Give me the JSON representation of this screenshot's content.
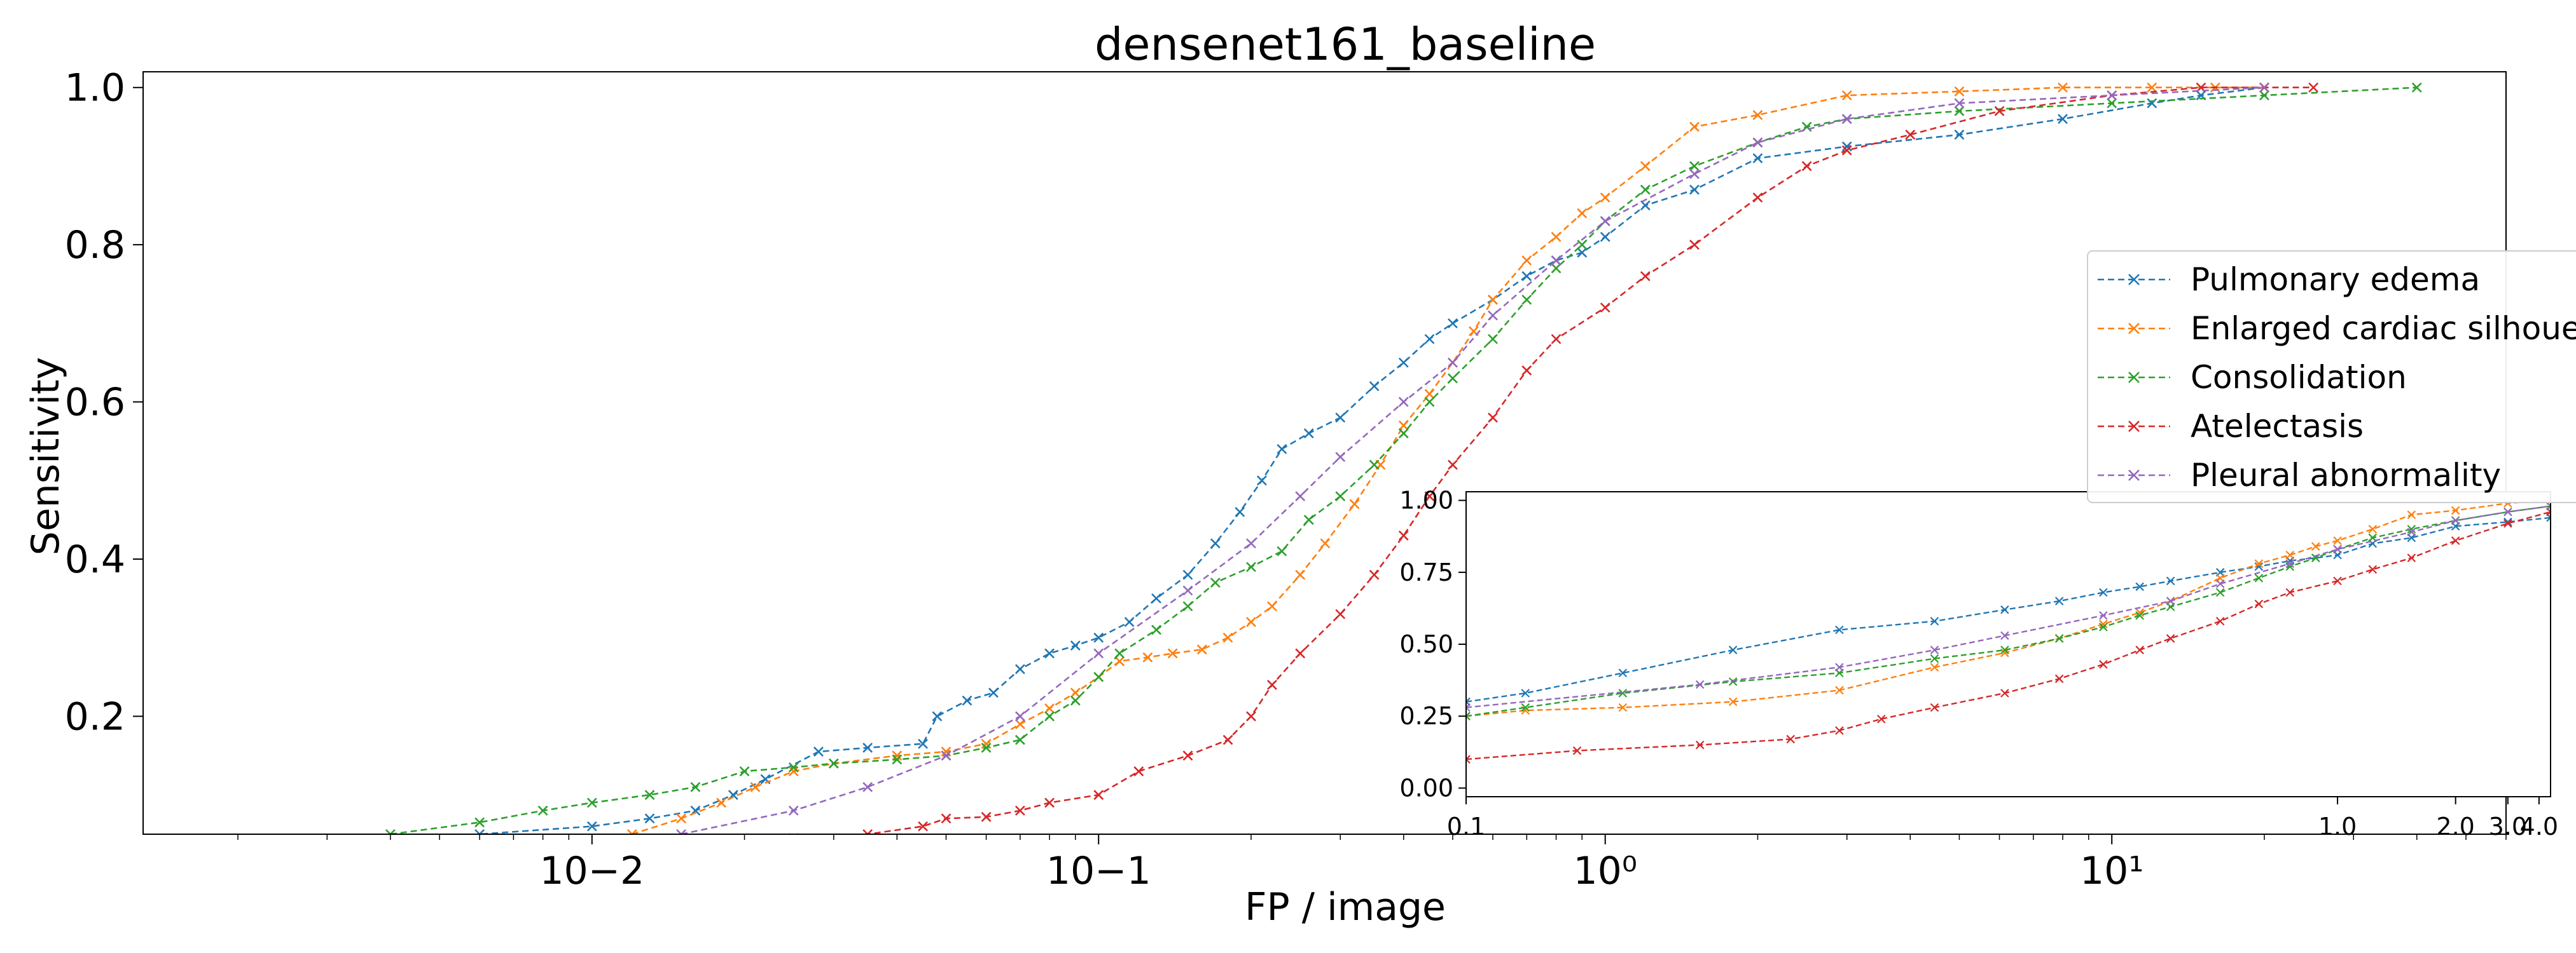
{
  "chart_data": [
    {
      "type": "line",
      "title": "densenet161_baseline",
      "xlabel": "FP / image",
      "ylabel": "Sensitivity",
      "xscale": "log",
      "xlim": [
        0.0013,
        60
      ],
      "ylim": [
        0.05,
        1.02
      ],
      "xticks": [
        0.01,
        0.1,
        1,
        10
      ],
      "xtick_labels": [
        "10−2",
        "10−1",
        "10⁰",
        "10¹"
      ],
      "yticks": [
        0.2,
        0.4,
        0.6,
        0.8,
        1.0
      ],
      "ytick_labels": [
        "0.2",
        "0.4",
        "0.6",
        "0.8",
        "1.0"
      ],
      "grid": false,
      "legend_position": "right",
      "marker": "x",
      "linestyle": "dashed",
      "series": [
        {
          "name": "Pulmonary edema",
          "color": "#1f77b4",
          "x": [
            0.004,
            0.006,
            0.01,
            0.013,
            0.016,
            0.019,
            0.022,
            0.028,
            0.035,
            0.045,
            0.048,
            0.055,
            0.062,
            0.07,
            0.08,
            0.09,
            0.1,
            0.115,
            0.13,
            0.15,
            0.17,
            0.19,
            0.21,
            0.23,
            0.26,
            0.3,
            0.35,
            0.4,
            0.45,
            0.5,
            0.6,
            0.7,
            0.8,
            0.9,
            1.0,
            1.2,
            1.5,
            2.0,
            3.0,
            5.0,
            8.0,
            12.0,
            15.0,
            20.0
          ],
          "y": [
            0.04,
            0.05,
            0.06,
            0.07,
            0.08,
            0.1,
            0.12,
            0.155,
            0.16,
            0.165,
            0.2,
            0.22,
            0.23,
            0.26,
            0.28,
            0.29,
            0.3,
            0.32,
            0.35,
            0.38,
            0.42,
            0.46,
            0.5,
            0.54,
            0.56,
            0.58,
            0.62,
            0.65,
            0.68,
            0.7,
            0.73,
            0.76,
            0.78,
            0.79,
            0.81,
            0.85,
            0.87,
            0.91,
            0.925,
            0.94,
            0.96,
            0.98,
            0.99,
            1.0
          ]
        },
        {
          "name": "Enlarged cardiac silhouette",
          "color": "#ff7f0e",
          "x": [
            0.012,
            0.015,
            0.018,
            0.021,
            0.025,
            0.03,
            0.04,
            0.05,
            0.06,
            0.07,
            0.08,
            0.09,
            0.1,
            0.11,
            0.125,
            0.14,
            0.16,
            0.18,
            0.2,
            0.22,
            0.25,
            0.28,
            0.32,
            0.36,
            0.4,
            0.45,
            0.5,
            0.55,
            0.6,
            0.7,
            0.8,
            0.9,
            1.0,
            1.2,
            1.5,
            2.0,
            3.0,
            5.0,
            8.0,
            12.0,
            16.0,
            20.0
          ],
          "y": [
            0.05,
            0.07,
            0.09,
            0.11,
            0.13,
            0.14,
            0.15,
            0.155,
            0.165,
            0.19,
            0.21,
            0.23,
            0.25,
            0.27,
            0.275,
            0.28,
            0.285,
            0.3,
            0.32,
            0.34,
            0.38,
            0.42,
            0.47,
            0.52,
            0.57,
            0.61,
            0.65,
            0.69,
            0.73,
            0.78,
            0.81,
            0.84,
            0.86,
            0.9,
            0.95,
            0.965,
            0.99,
            0.995,
            1.0,
            1.0,
            1.0,
            1.0
          ]
        },
        {
          "name": "Consolidation",
          "color": "#2ca02c",
          "x": [
            0.004,
            0.006,
            0.008,
            0.01,
            0.013,
            0.016,
            0.02,
            0.025,
            0.03,
            0.04,
            0.05,
            0.06,
            0.07,
            0.08,
            0.09,
            0.1,
            0.11,
            0.13,
            0.15,
            0.17,
            0.2,
            0.23,
            0.26,
            0.3,
            0.35,
            0.4,
            0.45,
            0.5,
            0.6,
            0.7,
            0.8,
            0.9,
            1.0,
            1.2,
            1.5,
            2.0,
            2.5,
            3.0,
            5.0,
            10.0,
            20.0,
            40.0
          ],
          "y": [
            0.05,
            0.065,
            0.08,
            0.09,
            0.1,
            0.11,
            0.13,
            0.135,
            0.14,
            0.145,
            0.15,
            0.16,
            0.17,
            0.2,
            0.22,
            0.25,
            0.28,
            0.31,
            0.34,
            0.37,
            0.39,
            0.41,
            0.45,
            0.48,
            0.52,
            0.56,
            0.6,
            0.63,
            0.68,
            0.73,
            0.77,
            0.8,
            0.83,
            0.87,
            0.9,
            0.93,
            0.95,
            0.96,
            0.97,
            0.98,
            0.99,
            1.0
          ]
        },
        {
          "name": "Atelectasis",
          "color": "#d62728",
          "x": [
            0.015,
            0.025,
            0.035,
            0.045,
            0.05,
            0.06,
            0.07,
            0.08,
            0.1,
            0.12,
            0.15,
            0.18,
            0.2,
            0.22,
            0.25,
            0.3,
            0.35,
            0.4,
            0.45,
            0.5,
            0.6,
            0.7,
            0.8,
            1.0,
            1.2,
            1.5,
            2.0,
            2.5,
            3.0,
            4.0,
            6.0,
            10.0,
            15.0,
            20.0,
            25.0
          ],
          "y": [
            0.04,
            0.045,
            0.05,
            0.06,
            0.07,
            0.072,
            0.08,
            0.09,
            0.1,
            0.13,
            0.15,
            0.17,
            0.2,
            0.24,
            0.28,
            0.33,
            0.38,
            0.43,
            0.48,
            0.52,
            0.58,
            0.64,
            0.68,
            0.72,
            0.76,
            0.8,
            0.86,
            0.9,
            0.92,
            0.94,
            0.97,
            0.99,
            1.0,
            1.0,
            1.0
          ]
        },
        {
          "name": "Pleural abnormality",
          "color": "#9467bd",
          "x": [
            0.015,
            0.025,
            0.035,
            0.05,
            0.07,
            0.1,
            0.15,
            0.2,
            0.25,
            0.3,
            0.4,
            0.5,
            0.6,
            0.8,
            1.0,
            1.5,
            2.0,
            3.0,
            5.0,
            10.0,
            20.0
          ],
          "y": [
            0.05,
            0.08,
            0.11,
            0.15,
            0.2,
            0.28,
            0.36,
            0.42,
            0.48,
            0.53,
            0.6,
            0.65,
            0.71,
            0.78,
            0.83,
            0.89,
            0.93,
            0.96,
            0.98,
            0.99,
            1.0
          ]
        }
      ]
    },
    {
      "type": "line",
      "title": "",
      "xlabel": "",
      "ylabel": "",
      "xscale": "reciprocal",
      "xlim": [
        0.1,
        4.5
      ],
      "ylim": [
        -0.03,
        1.03
      ],
      "xticks": [
        0.1,
        1.0,
        2.0,
        3.0,
        4.0
      ],
      "xtick_labels": [
        "0.1",
        "1.0",
        "2.0",
        "3.0",
        "4.0"
      ],
      "yticks": [
        0.0,
        0.25,
        0.5,
        0.75,
        1.0
      ],
      "ytick_labels": [
        "0.00",
        "0.25",
        "0.50",
        "0.75",
        "1.00"
      ],
      "grid": false,
      "inset": "lower-right",
      "marker": "x",
      "linestyle": "dashed",
      "series": [
        {
          "color": "#1f77b4",
          "x": [
            0.1,
            0.11,
            0.13,
            0.16,
            0.2,
            0.25,
            0.3,
            0.35,
            0.4,
            0.45,
            0.5,
            0.6,
            0.7,
            0.8,
            0.9,
            1.0,
            1.2,
            1.5,
            2.0,
            3.0,
            4.5
          ],
          "y": [
            0.3,
            0.33,
            0.4,
            0.48,
            0.55,
            0.58,
            0.62,
            0.65,
            0.68,
            0.7,
            0.72,
            0.75,
            0.77,
            0.79,
            0.8,
            0.81,
            0.85,
            0.87,
            0.91,
            0.925,
            0.94
          ]
        },
        {
          "color": "#ff7f0e",
          "x": [
            0.1,
            0.11,
            0.13,
            0.16,
            0.2,
            0.25,
            0.3,
            0.35,
            0.4,
            0.45,
            0.5,
            0.6,
            0.7,
            0.8,
            0.9,
            1.0,
            1.2,
            1.5,
            2.0,
            3.0,
            4.5
          ],
          "y": [
            0.25,
            0.27,
            0.28,
            0.3,
            0.34,
            0.42,
            0.47,
            0.52,
            0.57,
            0.61,
            0.65,
            0.73,
            0.78,
            0.81,
            0.84,
            0.86,
            0.9,
            0.95,
            0.965,
            0.99,
            1.0
          ]
        },
        {
          "color": "#2ca02c",
          "x": [
            0.1,
            0.11,
            0.13,
            0.16,
            0.2,
            0.25,
            0.3,
            0.35,
            0.4,
            0.45,
            0.5,
            0.6,
            0.7,
            0.8,
            0.9,
            1.0,
            1.2,
            1.5,
            2.0,
            3.0,
            4.5
          ],
          "y": [
            0.25,
            0.28,
            0.33,
            0.37,
            0.4,
            0.45,
            0.48,
            0.52,
            0.56,
            0.6,
            0.63,
            0.68,
            0.73,
            0.77,
            0.8,
            0.83,
            0.87,
            0.9,
            0.93,
            0.96,
            0.98
          ]
        },
        {
          "color": "#d62728",
          "x": [
            0.1,
            0.12,
            0.15,
            0.18,
            0.2,
            0.22,
            0.25,
            0.3,
            0.35,
            0.4,
            0.45,
            0.5,
            0.6,
            0.7,
            0.8,
            1.0,
            1.2,
            1.5,
            2.0,
            3.0,
            4.5
          ],
          "y": [
            0.1,
            0.13,
            0.15,
            0.17,
            0.2,
            0.24,
            0.28,
            0.33,
            0.38,
            0.43,
            0.48,
            0.52,
            0.58,
            0.64,
            0.68,
            0.72,
            0.76,
            0.8,
            0.86,
            0.92,
            0.96
          ]
        },
        {
          "color": "#9467bd",
          "x": [
            0.1,
            0.15,
            0.2,
            0.25,
            0.3,
            0.4,
            0.5,
            0.6,
            0.8,
            1.0,
            1.5,
            2.0,
            3.0,
            4.5
          ],
          "y": [
            0.28,
            0.36,
            0.42,
            0.48,
            0.53,
            0.6,
            0.65,
            0.71,
            0.78,
            0.83,
            0.89,
            0.93,
            0.96,
            0.98
          ]
        }
      ]
    }
  ]
}
